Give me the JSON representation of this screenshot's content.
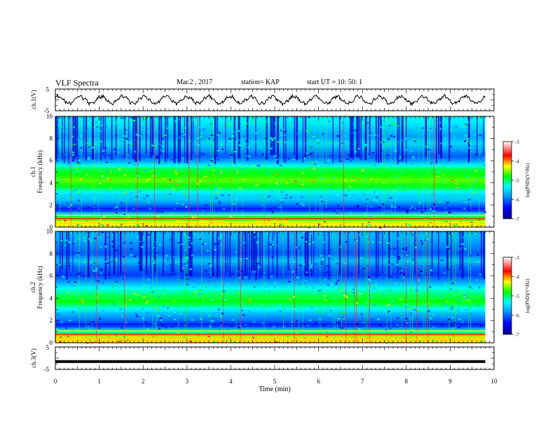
{
  "header": {
    "title": "VLF Spectra",
    "date": "Mar.2 , 2017",
    "station": "station= KAP",
    "start": "start  UT =   10: 50: 1"
  },
  "chart_data": [
    {
      "type": "line",
      "ylabel": "ch.1(V)",
      "ylim": [
        -5,
        5
      ],
      "yticks": [
        "5",
        "-5"
      ],
      "xlim": [
        0,
        10
      ],
      "waveform": "oscillating noisy trace, about 20 cycles over 9.8 min, amplitude ~2 V"
    },
    {
      "type": "heatmap",
      "ylabel": "ch.1",
      "ylabel2": "Frequency (kHz)",
      "ylim": [
        0,
        10
      ],
      "yticks": [
        "0",
        "2",
        "4",
        "6",
        "8",
        "10"
      ],
      "xlim": [
        0,
        10
      ],
      "data_end_min": 9.8,
      "band_profile": [
        {
          "f": 0.5,
          "level": -4.3
        },
        {
          "f": 1.0,
          "level": -5.0
        },
        {
          "f": 1.6,
          "level": -6.4
        },
        {
          "f": 2.0,
          "level": -6.0
        },
        {
          "f": 2.5,
          "level": -5.6
        },
        {
          "f": 3.0,
          "level": -5.5
        },
        {
          "f": 3.6,
          "level": -4.9
        },
        {
          "f": 4.2,
          "level": -4.6
        },
        {
          "f": 4.8,
          "level": -4.8
        },
        {
          "f": 5.3,
          "level": -5.0
        },
        {
          "f": 5.9,
          "level": -5.7
        },
        {
          "f": 6.4,
          "level": -6.1
        },
        {
          "f": 7.0,
          "level": -5.8
        },
        {
          "f": 7.6,
          "level": -5.5
        },
        {
          "f": 8.2,
          "level": -5.8
        },
        {
          "f": 8.8,
          "level": -5.6
        },
        {
          "f": 9.5,
          "level": -5.4
        }
      ],
      "colorbar": {
        "label": "log(PSD)(V²/Hz)",
        "ticks": [
          "-3",
          "-4",
          "-5",
          "-6",
          "-7"
        ],
        "range": [
          -7,
          -3
        ]
      }
    },
    {
      "type": "heatmap",
      "ylabel": "ch.2",
      "ylabel2": "Frequency (kHz)",
      "ylim": [
        0,
        10
      ],
      "yticks": [
        "0",
        "2",
        "4",
        "6",
        "8",
        "10"
      ],
      "xlim": [
        0,
        10
      ],
      "data_end_min": 9.8,
      "band_profile": [
        {
          "f": 0.5,
          "level": -4.2
        },
        {
          "f": 1.0,
          "level": -5.2
        },
        {
          "f": 1.6,
          "level": -6.4
        },
        {
          "f": 2.0,
          "level": -6.0
        },
        {
          "f": 2.6,
          "level": -5.7
        },
        {
          "f": 3.2,
          "level": -5.2
        },
        {
          "f": 3.7,
          "level": -4.8
        },
        {
          "f": 4.3,
          "level": -5.0
        },
        {
          "f": 4.9,
          "level": -5.3
        },
        {
          "f": 5.5,
          "level": -5.8
        },
        {
          "f": 6.1,
          "level": -6.2
        },
        {
          "f": 6.8,
          "level": -6.0
        },
        {
          "f": 7.4,
          "level": -5.6
        },
        {
          "f": 8.0,
          "level": -6.1
        },
        {
          "f": 8.7,
          "level": -5.9
        },
        {
          "f": 9.5,
          "level": -5.7
        }
      ],
      "colorbar": {
        "label": "log(PSD)(V²/Hz)",
        "ticks": [
          "-3",
          "-4",
          "-5",
          "-6",
          "-7"
        ],
        "range": [
          -7,
          -3
        ]
      }
    },
    {
      "type": "line",
      "ylabel": "ch.3(V)",
      "ylim": [
        -5,
        5
      ],
      "yticks": [
        "5",
        "-5"
      ],
      "xlim": [
        0,
        10
      ],
      "xticks": [
        "0",
        "1",
        "2",
        "3",
        "4",
        "5",
        "6",
        "7",
        "8",
        "9",
        "10"
      ],
      "xlabel": "Time  (min)",
      "constant_value": -1.5
    }
  ]
}
